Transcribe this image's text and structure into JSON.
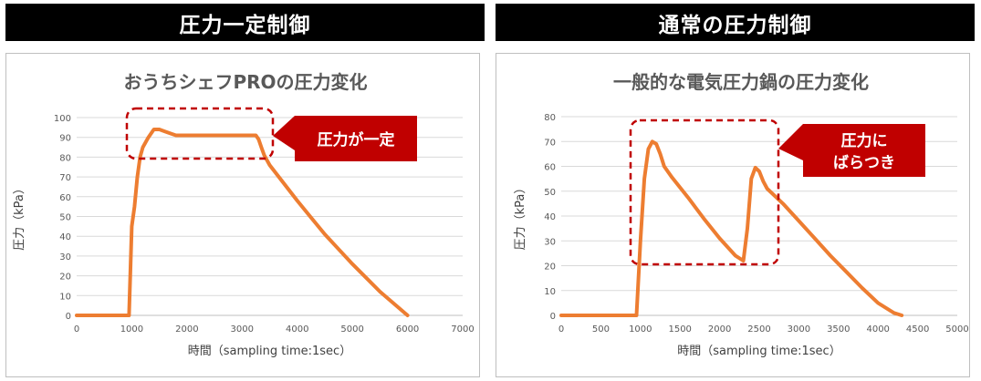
{
  "headers": {
    "left": "圧力一定制御",
    "right": "通常の圧力制御"
  },
  "chart_data": [
    {
      "type": "line",
      "title": "おうちシェフPROの圧力変化",
      "xlabel": "時間（sampling time:1sec）",
      "ylabel": "圧力（kPa）",
      "xlim": [
        0,
        7000
      ],
      "ylim": [
        0,
        100
      ],
      "x_ticks": [
        "0",
        "1000",
        "2000",
        "3000",
        "4000",
        "5000",
        "6000",
        "7000"
      ],
      "y_ticks": [
        "0",
        "10",
        "20",
        "30",
        "40",
        "50",
        "60",
        "70",
        "80",
        "90",
        "100"
      ],
      "grid": true,
      "legend": "none",
      "callout": "圧力が一定",
      "series": [
        {
          "color": "#ed7d31",
          "x": [
            0,
            950,
            1000,
            1050,
            1100,
            1150,
            1200,
            1300,
            1400,
            1500,
            1600,
            1700,
            1800,
            2000,
            2200,
            2400,
            2600,
            2800,
            3000,
            3200,
            3250,
            3300,
            3350,
            3400,
            3500,
            3750,
            4000,
            4250,
            4500,
            4750,
            5000,
            5250,
            5500,
            5750,
            6000
          ],
          "y": [
            0,
            0,
            45,
            55,
            70,
            80,
            85,
            90,
            94,
            94,
            93,
            92,
            91,
            91,
            91,
            91,
            91,
            91,
            91,
            91,
            91,
            89,
            85,
            81,
            76,
            67,
            58,
            49.5,
            41,
            33.5,
            26,
            19,
            12,
            6,
            0
          ]
        }
      ]
    },
    {
      "type": "line",
      "title": "一般的な電気圧力鍋の圧力変化",
      "xlabel": "時間（sampling time:1sec）",
      "ylabel": "圧力（kPa）",
      "xlim": [
        0,
        5000
      ],
      "ylim": [
        0,
        80
      ],
      "x_ticks": [
        "0",
        "500",
        "1000",
        "1500",
        "2000",
        "2500",
        "3000",
        "3500",
        "4000",
        "4500",
        "5000"
      ],
      "y_ticks": [
        "0",
        "10",
        "20",
        "30",
        "40",
        "50",
        "60",
        "70",
        "80"
      ],
      "grid": true,
      "legend": "none",
      "callout": [
        "圧力に",
        "ばらつき"
      ],
      "series": [
        {
          "color": "#ed7d31",
          "x": [
            0,
            950,
            1000,
            1050,
            1100,
            1150,
            1200,
            1250,
            1300,
            1400,
            1600,
            1800,
            2000,
            2200,
            2300,
            2350,
            2400,
            2450,
            2500,
            2550,
            2600,
            2800,
            3000,
            3200,
            3400,
            3600,
            3800,
            4000,
            4200,
            4300
          ],
          "y": [
            0,
            0,
            30,
            55,
            67,
            70,
            69,
            65,
            60,
            55.5,
            47.5,
            39,
            31,
            24,
            22,
            35,
            55,
            59.5,
            58,
            54,
            51,
            45,
            38,
            31,
            24,
            17.5,
            11,
            5,
            1,
            0
          ]
        }
      ]
    }
  ]
}
